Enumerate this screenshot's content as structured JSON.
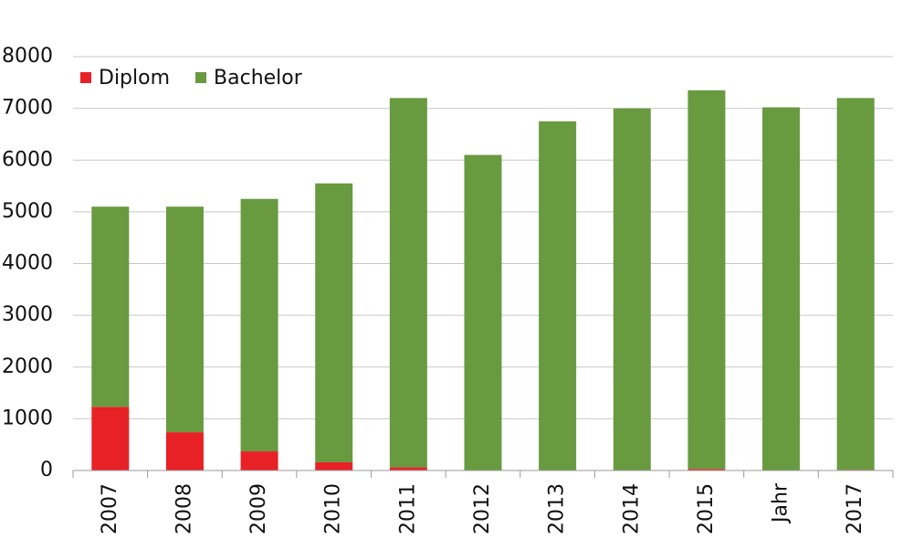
{
  "chart_data": {
    "type": "stacked_bar",
    "categories": [
      "2007",
      "2008",
      "2009",
      "2010",
      "2011",
      "2012",
      "2013",
      "2014",
      "2015",
      "Jahr",
      "2017"
    ],
    "series": [
      {
        "name": "Diplom",
        "color": "#e82127",
        "values": [
          1230,
          740,
          370,
          160,
          60,
          0,
          0,
          0,
          30,
          0,
          15
        ]
      },
      {
        "name": "Bachelor",
        "color": "#689a40",
        "values": [
          3870,
          4360,
          4880,
          5390,
          7140,
          6100,
          6750,
          7000,
          7320,
          7020,
          7185
        ]
      }
    ],
    "ylim": [
      0,
      8000
    ],
    "yticks": [
      0,
      1000,
      2000,
      3000,
      4000,
      5000,
      6000,
      7000,
      8000
    ],
    "grid": true,
    "legend": "top-left"
  }
}
